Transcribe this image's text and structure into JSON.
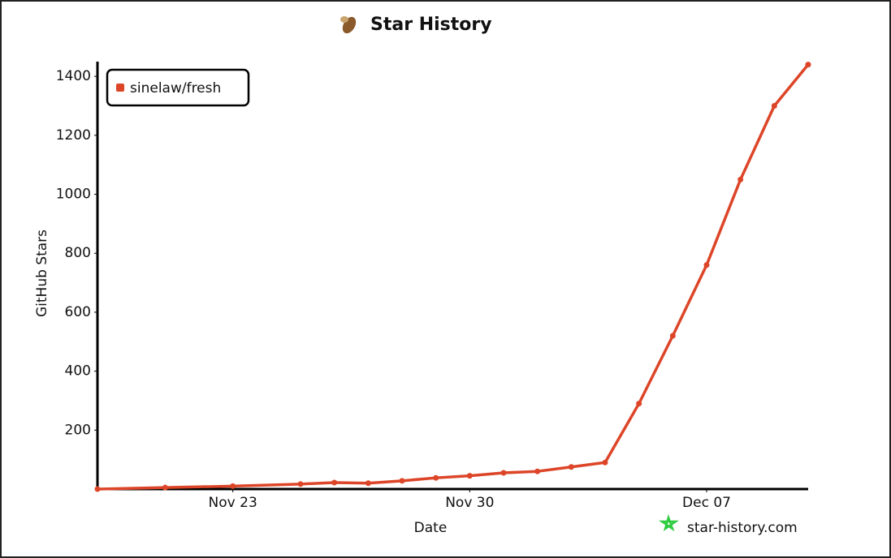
{
  "chart_data": {
    "type": "line",
    "title": "Star History",
    "x_label": "Date",
    "y_label": "GitHub Stars",
    "watermark": "star-history.com",
    "x": [
      "Nov 19",
      "Nov 21",
      "Nov 23",
      "Nov 25",
      "Nov 26",
      "Nov 27",
      "Nov 28",
      "Nov 29",
      "Nov 30",
      "Dec 01",
      "Dec 02",
      "Dec 03",
      "Dec 04",
      "Dec 05",
      "Dec 06",
      "Dec 07",
      "Dec 08",
      "Dec 09",
      "Dec 10"
    ],
    "series": [
      {
        "name": "sinelaw/fresh",
        "color": "#dd4528",
        "values": [
          0,
          5,
          10,
          17,
          22,
          20,
          28,
          38,
          45,
          55,
          60,
          75,
          90,
          290,
          520,
          760,
          1050,
          1300,
          1440
        ]
      }
    ],
    "xlim": [
      "Nov 19",
      "Dec 10"
    ],
    "xticks": [
      "Nov 23",
      "Nov 30",
      "Dec 07"
    ],
    "ylim": [
      0,
      1450
    ],
    "yticks": [
      200,
      400,
      600,
      800,
      1000,
      1200,
      1400
    ],
    "legend": "top-left",
    "grid": false
  }
}
